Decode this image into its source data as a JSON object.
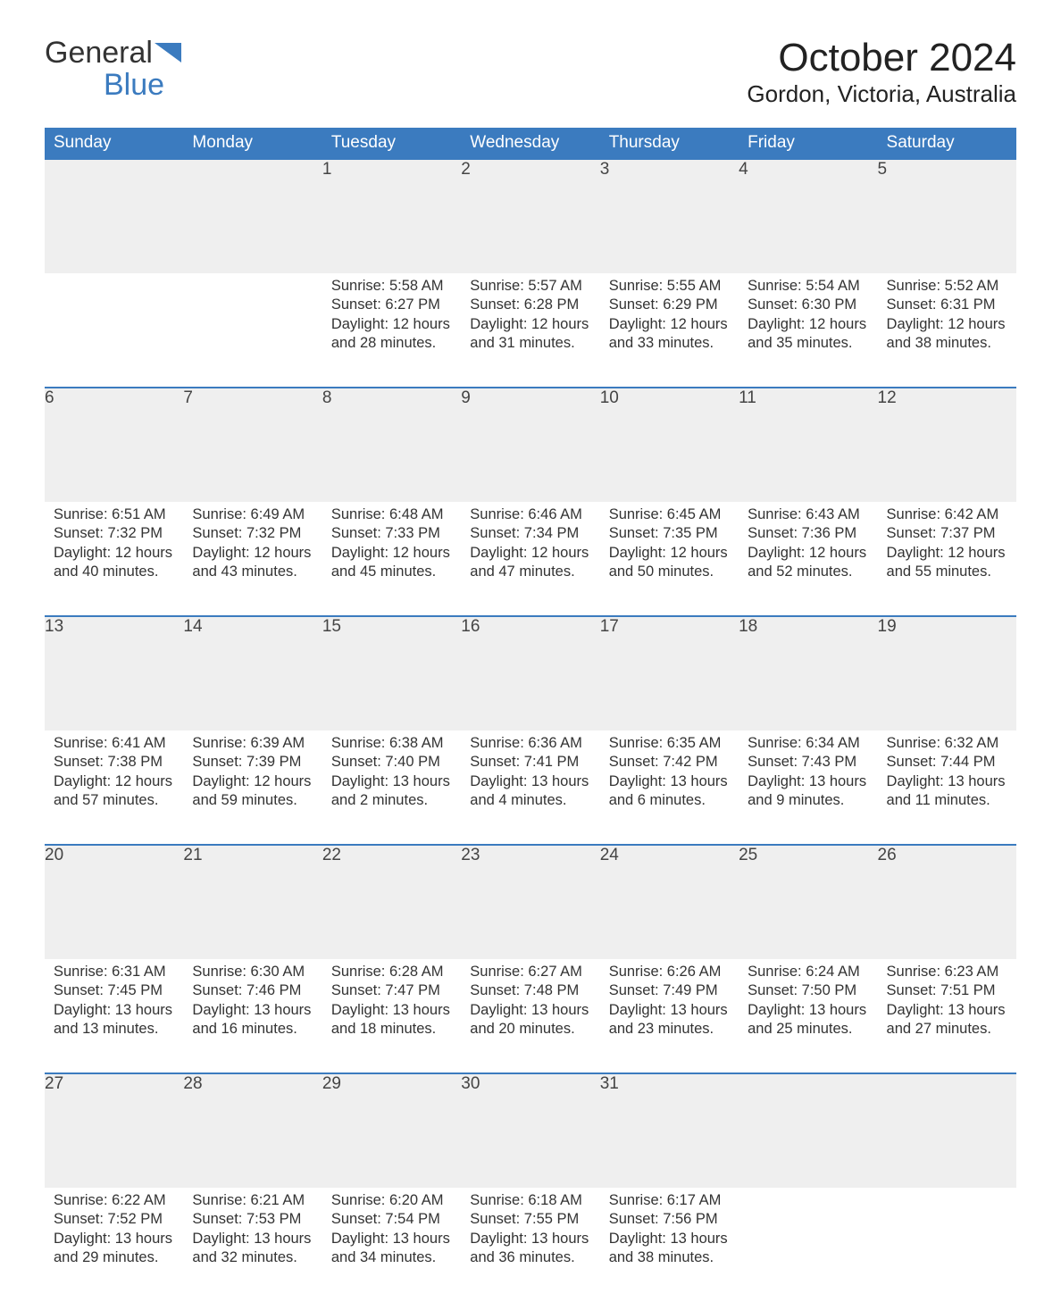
{
  "brand": {
    "part1": "General",
    "part2": "Blue"
  },
  "title": "October 2024",
  "subtitle": "Gordon, Victoria, Australia",
  "colors": {
    "header_bg": "#3b7bbf",
    "header_text": "#ffffff",
    "daynum_bg": "#efefef",
    "border_top": "#3b7bbf",
    "body_text": "#333333",
    "page_bg": "#ffffff"
  },
  "fonts": {
    "title_size_pt": 33,
    "subtitle_size_pt": 20,
    "th_size_pt": 14,
    "daynum_size_pt": 14,
    "body_size_pt": 12
  },
  "weekdays": [
    "Sunday",
    "Monday",
    "Tuesday",
    "Wednesday",
    "Thursday",
    "Friday",
    "Saturday"
  ],
  "labels": {
    "sunrise": "Sunrise:",
    "sunset": "Sunset:",
    "daylight": "Daylight:"
  },
  "weeks": [
    [
      null,
      null,
      {
        "n": "1",
        "sunrise": "5:58 AM",
        "sunset": "6:27 PM",
        "daylight": "12 hours and 28 minutes."
      },
      {
        "n": "2",
        "sunrise": "5:57 AM",
        "sunset": "6:28 PM",
        "daylight": "12 hours and 31 minutes."
      },
      {
        "n": "3",
        "sunrise": "5:55 AM",
        "sunset": "6:29 PM",
        "daylight": "12 hours and 33 minutes."
      },
      {
        "n": "4",
        "sunrise": "5:54 AM",
        "sunset": "6:30 PM",
        "daylight": "12 hours and 35 minutes."
      },
      {
        "n": "5",
        "sunrise": "5:52 AM",
        "sunset": "6:31 PM",
        "daylight": "12 hours and 38 minutes."
      }
    ],
    [
      {
        "n": "6",
        "sunrise": "6:51 AM",
        "sunset": "7:32 PM",
        "daylight": "12 hours and 40 minutes."
      },
      {
        "n": "7",
        "sunrise": "6:49 AM",
        "sunset": "7:32 PM",
        "daylight": "12 hours and 43 minutes."
      },
      {
        "n": "8",
        "sunrise": "6:48 AM",
        "sunset": "7:33 PM",
        "daylight": "12 hours and 45 minutes."
      },
      {
        "n": "9",
        "sunrise": "6:46 AM",
        "sunset": "7:34 PM",
        "daylight": "12 hours and 47 minutes."
      },
      {
        "n": "10",
        "sunrise": "6:45 AM",
        "sunset": "7:35 PM",
        "daylight": "12 hours and 50 minutes."
      },
      {
        "n": "11",
        "sunrise": "6:43 AM",
        "sunset": "7:36 PM",
        "daylight": "12 hours and 52 minutes."
      },
      {
        "n": "12",
        "sunrise": "6:42 AM",
        "sunset": "7:37 PM",
        "daylight": "12 hours and 55 minutes."
      }
    ],
    [
      {
        "n": "13",
        "sunrise": "6:41 AM",
        "sunset": "7:38 PM",
        "daylight": "12 hours and 57 minutes."
      },
      {
        "n": "14",
        "sunrise": "6:39 AM",
        "sunset": "7:39 PM",
        "daylight": "12 hours and 59 minutes."
      },
      {
        "n": "15",
        "sunrise": "6:38 AM",
        "sunset": "7:40 PM",
        "daylight": "13 hours and 2 minutes."
      },
      {
        "n": "16",
        "sunrise": "6:36 AM",
        "sunset": "7:41 PM",
        "daylight": "13 hours and 4 minutes."
      },
      {
        "n": "17",
        "sunrise": "6:35 AM",
        "sunset": "7:42 PM",
        "daylight": "13 hours and 6 minutes."
      },
      {
        "n": "18",
        "sunrise": "6:34 AM",
        "sunset": "7:43 PM",
        "daylight": "13 hours and 9 minutes."
      },
      {
        "n": "19",
        "sunrise": "6:32 AM",
        "sunset": "7:44 PM",
        "daylight": "13 hours and 11 minutes."
      }
    ],
    [
      {
        "n": "20",
        "sunrise": "6:31 AM",
        "sunset": "7:45 PM",
        "daylight": "13 hours and 13 minutes."
      },
      {
        "n": "21",
        "sunrise": "6:30 AM",
        "sunset": "7:46 PM",
        "daylight": "13 hours and 16 minutes."
      },
      {
        "n": "22",
        "sunrise": "6:28 AM",
        "sunset": "7:47 PM",
        "daylight": "13 hours and 18 minutes."
      },
      {
        "n": "23",
        "sunrise": "6:27 AM",
        "sunset": "7:48 PM",
        "daylight": "13 hours and 20 minutes."
      },
      {
        "n": "24",
        "sunrise": "6:26 AM",
        "sunset": "7:49 PM",
        "daylight": "13 hours and 23 minutes."
      },
      {
        "n": "25",
        "sunrise": "6:24 AM",
        "sunset": "7:50 PM",
        "daylight": "13 hours and 25 minutes."
      },
      {
        "n": "26",
        "sunrise": "6:23 AM",
        "sunset": "7:51 PM",
        "daylight": "13 hours and 27 minutes."
      }
    ],
    [
      {
        "n": "27",
        "sunrise": "6:22 AM",
        "sunset": "7:52 PM",
        "daylight": "13 hours and 29 minutes."
      },
      {
        "n": "28",
        "sunrise": "6:21 AM",
        "sunset": "7:53 PM",
        "daylight": "13 hours and 32 minutes."
      },
      {
        "n": "29",
        "sunrise": "6:20 AM",
        "sunset": "7:54 PM",
        "daylight": "13 hours and 34 minutes."
      },
      {
        "n": "30",
        "sunrise": "6:18 AM",
        "sunset": "7:55 PM",
        "daylight": "13 hours and 36 minutes."
      },
      {
        "n": "31",
        "sunrise": "6:17 AM",
        "sunset": "7:56 PM",
        "daylight": "13 hours and 38 minutes."
      },
      null,
      null
    ]
  ]
}
